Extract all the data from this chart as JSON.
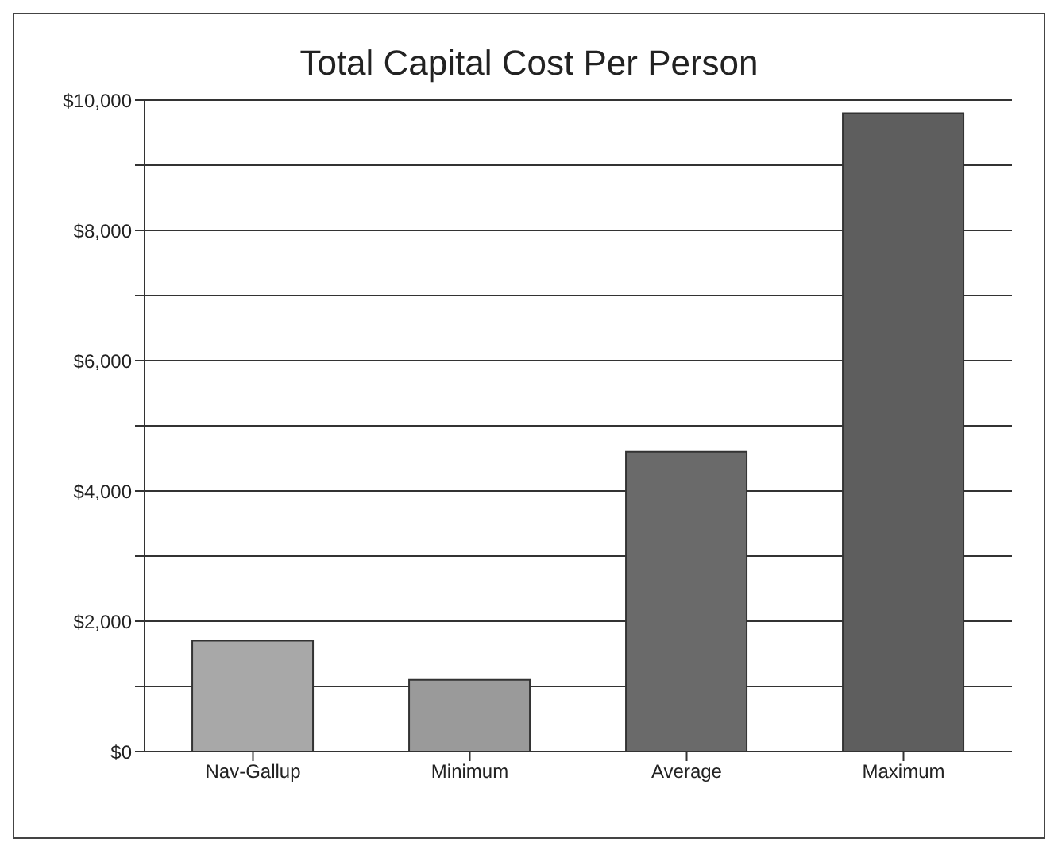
{
  "chart_data": {
    "type": "bar",
    "title": "Total Capital Cost Per Person",
    "categories": [
      "Nav-Gallup",
      "Minimum",
      "Average",
      "Maximum"
    ],
    "values": [
      1700,
      1100,
      4600,
      9800
    ],
    "colors": [
      "#a8a8a8",
      "#9a9a9a",
      "#6a6a6a",
      "#5e5e5e"
    ],
    "ylim": [
      0,
      10000
    ],
    "yticks": [
      {
        "value": 0,
        "label": "$0"
      },
      {
        "value": 1000,
        "label": null
      },
      {
        "value": 2000,
        "label": "$2,000"
      },
      {
        "value": 3000,
        "label": null
      },
      {
        "value": 4000,
        "label": "$4,000"
      },
      {
        "value": 5000,
        "label": null
      },
      {
        "value": 6000,
        "label": "$6,000"
      },
      {
        "value": 7000,
        "label": null
      },
      {
        "value": 8000,
        "label": "$8,000"
      },
      {
        "value": 9000,
        "label": null
      },
      {
        "value": 10000,
        "label": "$10,000"
      }
    ],
    "grid": "y"
  }
}
